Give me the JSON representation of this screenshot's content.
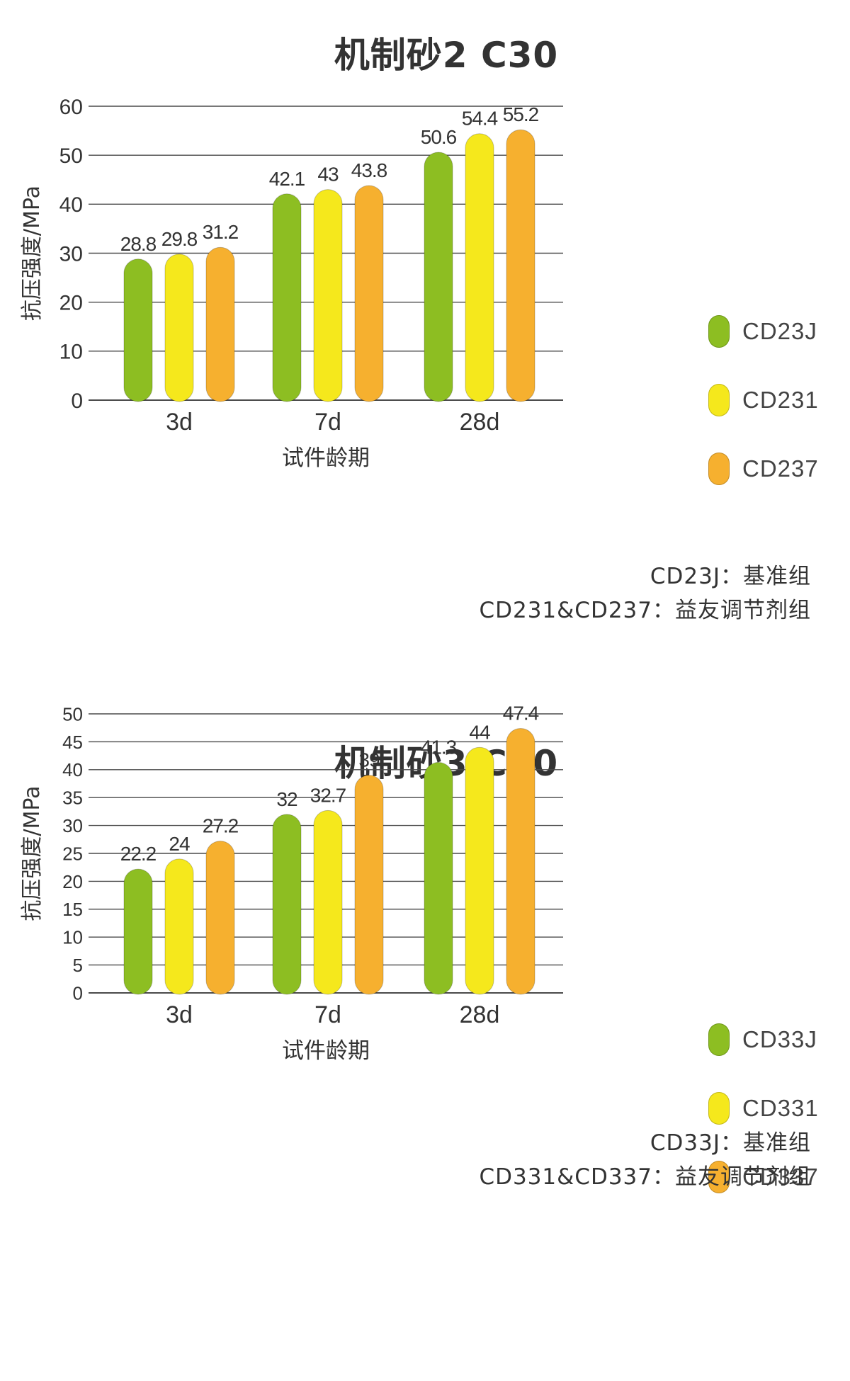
{
  "chart_data": [
    {
      "type": "bar",
      "title": "机制砂2 C30",
      "ylabel": "抗压强度/MPa",
      "xlabel": "试件龄期",
      "categories": [
        "3d",
        "7d",
        "28d"
      ],
      "ylim": [
        0,
        60
      ],
      "yticks": [
        0,
        10,
        20,
        30,
        40,
        50,
        60
      ],
      "grid": true,
      "legend_position": "right",
      "series": [
        {
          "name": "CD23J",
          "color": "#8dbe22",
          "values": [
            28.8,
            42.1,
            50.6
          ],
          "labels": [
            "28.8",
            "42.1",
            "50.6"
          ]
        },
        {
          "name": "CD231",
          "color": "#f5e81c",
          "values": [
            29.8,
            43,
            54.4
          ],
          "labels": [
            "29.8",
            "43",
            "54.4"
          ]
        },
        {
          "name": "CD237",
          "color": "#f6b02f",
          "values": [
            31.2,
            43.8,
            55.2
          ],
          "labels": [
            "31.2",
            "43.8",
            "55.2"
          ]
        }
      ],
      "notes": [
        "CD23J：基准组",
        "CD231&CD237：益友调节剂组"
      ]
    },
    {
      "type": "bar",
      "title": "机制砂3 C30",
      "ylabel": "抗压强度/MPa",
      "xlabel": "试件龄期",
      "categories": [
        "3d",
        "7d",
        "28d"
      ],
      "ylim": [
        0,
        50
      ],
      "yticks": [
        0,
        5,
        10,
        15,
        20,
        25,
        30,
        35,
        40,
        45,
        50
      ],
      "grid": true,
      "legend_position": "right",
      "series": [
        {
          "name": "CD33J",
          "color": "#8dbe22",
          "values": [
            22.2,
            32,
            41.3
          ],
          "labels": [
            "22.2",
            "32",
            "41.3"
          ]
        },
        {
          "name": "CD331",
          "color": "#f5e81c",
          "values": [
            24,
            32.7,
            44
          ],
          "labels": [
            "24",
            "32.7",
            "44"
          ]
        },
        {
          "name": "CD337",
          "color": "#f6b02f",
          "values": [
            27.2,
            39,
            47.4
          ],
          "labels": [
            "27.2",
            "39",
            "47.4"
          ]
        }
      ],
      "notes": [
        "CD33J：基准组",
        "CD331&CD337：益友调节剂组"
      ]
    }
  ]
}
